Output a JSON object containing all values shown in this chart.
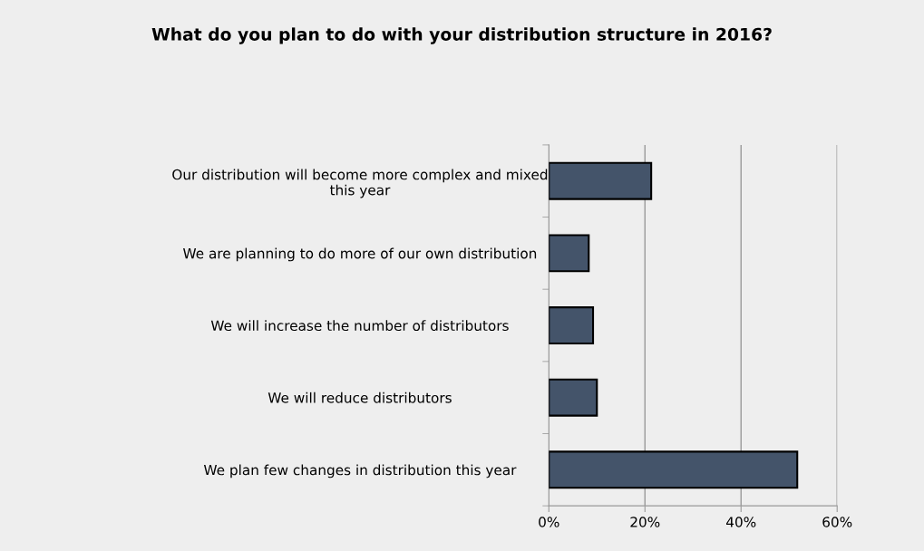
{
  "chart_data": {
    "type": "bar",
    "orientation": "horizontal",
    "title": "What do you plan to do with your distribution structure in 2016?",
    "categories": [
      "Our distribution will become more complex and mixed\nthis year",
      "We are planning to do more of our own distribution",
      "We will increase the number of distributors",
      "We will reduce distributors",
      "We plan few changes in distribution this year"
    ],
    "values": [
      21.3,
      8.3,
      9.2,
      10.0,
      51.7
    ],
    "color": "#44546a",
    "xlim": [
      0,
      60
    ],
    "xticks": [
      {
        "value": 0,
        "label": "0%"
      },
      {
        "value": 20,
        "label": "20%"
      },
      {
        "value": 40,
        "label": "40%"
      },
      {
        "value": 60,
        "label": "60%"
      }
    ],
    "grid": "x",
    "legend": false
  }
}
